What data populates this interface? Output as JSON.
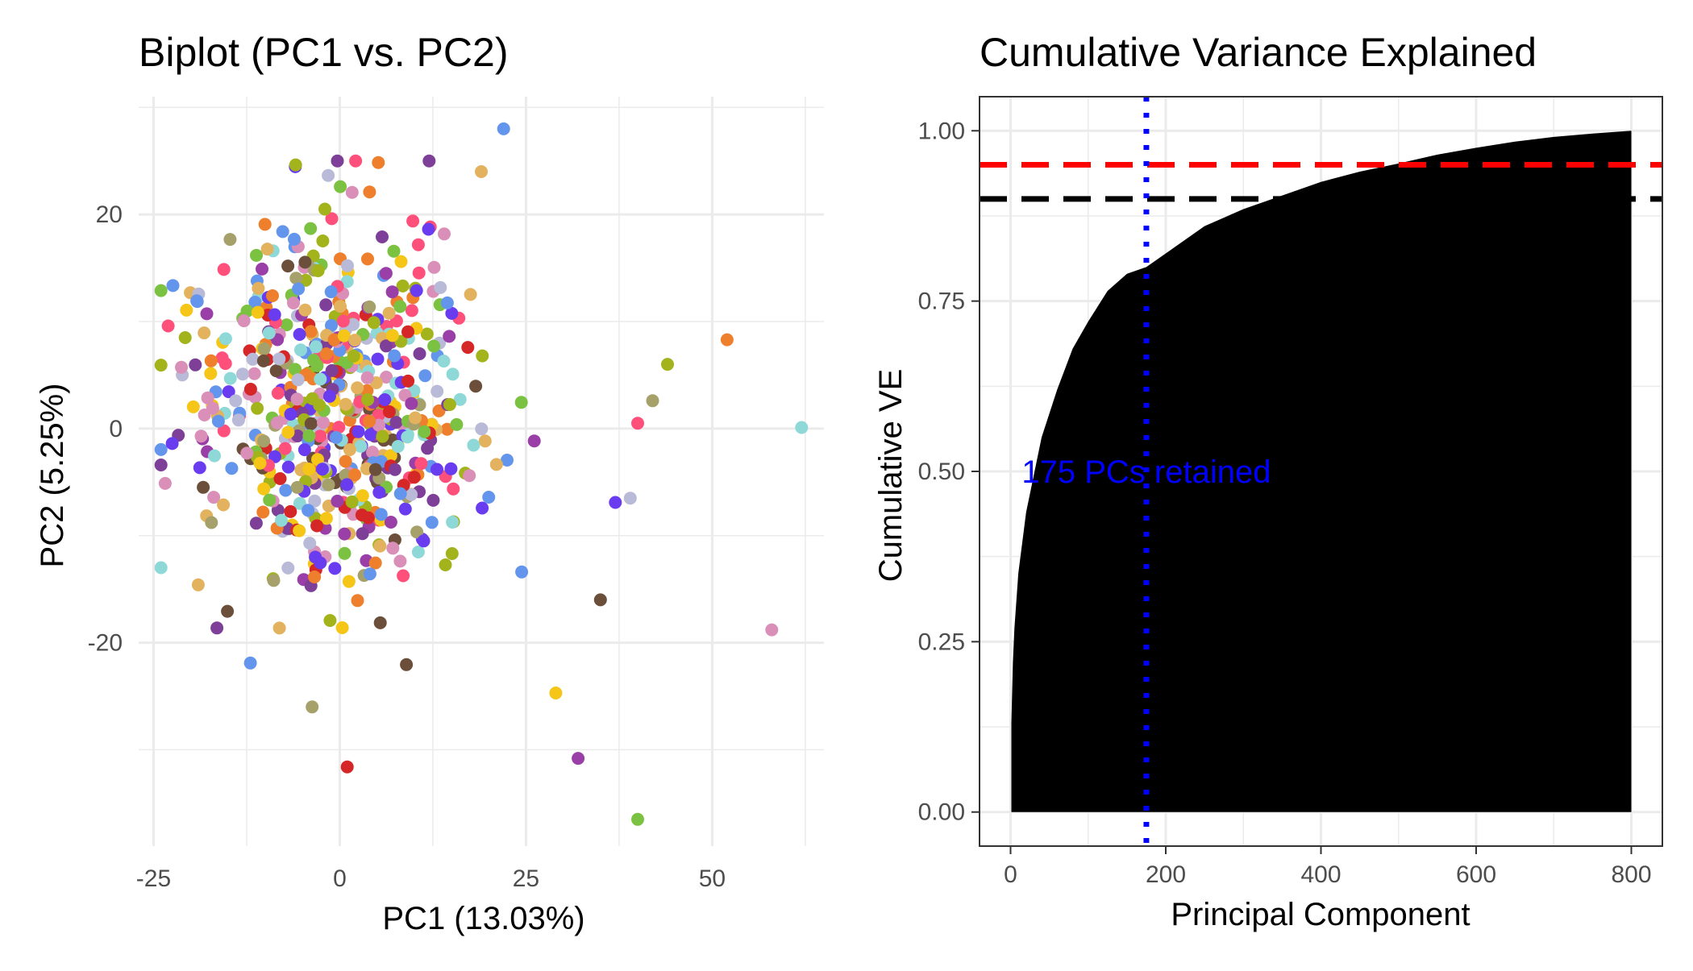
{
  "colors": {
    "grid": "#ebebeb",
    "tick_text": "#4d4d4d",
    "area_fill": "#000000",
    "hline_95": "#ff0000",
    "hline_90": "#000000",
    "vline": "#0000ff",
    "annotation": "#0000ff",
    "scatter_palette": [
      "#6495ED",
      "#FF4F7B",
      "#7CC242",
      "#A6A06A",
      "#F5C518",
      "#EE7F2D",
      "#6B4F3A",
      "#7E3F98",
      "#B9B9D8",
      "#D62728",
      "#8FD8D8",
      "#9B3FA8",
      "#A3B31C",
      "#D98FB7",
      "#E3B25E",
      "#6A3CF0"
    ]
  },
  "chart_data": [
    {
      "type": "scatter",
      "title": "Biplot (PC1 vs. PC2)",
      "xlabel": "PC1 (13.03%)",
      "ylabel": "PC2 (5.25%)",
      "xlim": [
        -27,
        65
      ],
      "ylim": [
        -39,
        31
      ],
      "x_ticks": [
        -25,
        0,
        25,
        50
      ],
      "x_tick_labels": [
        "-25",
        "0",
        "25",
        "50"
      ],
      "y_ticks": [
        -20,
        0,
        20
      ],
      "y_tick_labels": [
        "-20",
        "0",
        "20"
      ],
      "grid": true,
      "legend": "none",
      "notable_points": [
        {
          "x": 22,
          "y": 28
        },
        {
          "x": 12,
          "y": 25
        },
        {
          "x": 19,
          "y": 24
        },
        {
          "x": 52,
          "y": 8.3
        },
        {
          "x": 44,
          "y": 6
        },
        {
          "x": 42,
          "y": 2.6
        },
        {
          "x": 62,
          "y": 0.1
        },
        {
          "x": 40,
          "y": 0.5
        },
        {
          "x": 39,
          "y": -6.5
        },
        {
          "x": 37,
          "y": -6.9
        },
        {
          "x": 35,
          "y": -16
        },
        {
          "x": 58,
          "y": -18.8
        },
        {
          "x": 29,
          "y": -24.7
        },
        {
          "x": 32,
          "y": -30.8
        },
        {
          "x": 40,
          "y": -36.5
        },
        {
          "x": 1,
          "y": -31.6
        },
        {
          "x": -12,
          "y": -21.9
        },
        {
          "x": -24,
          "y": -3.4
        },
        {
          "x": -19,
          "y": -14.6
        },
        {
          "x": 4,
          "y": 22.1
        },
        {
          "x": -2,
          "y": 20.5
        }
      ],
      "cluster": {
        "n": 620,
        "center": [
          -1,
          2
        ],
        "sd": [
          9.5,
          8.5
        ]
      }
    },
    {
      "type": "area",
      "title": "Cumulative Variance Explained",
      "xlabel": "Principal Component",
      "ylabel": "Cumulative VE",
      "xlim": [
        -40,
        840
      ],
      "ylim": [
        -0.05,
        1.05
      ],
      "x_ticks": [
        0,
        200,
        400,
        600,
        800
      ],
      "x_tick_labels": [
        "0",
        "200",
        "400",
        "600",
        "800"
      ],
      "y_ticks": [
        0,
        0.25,
        0.5,
        0.75,
        1
      ],
      "y_tick_labels": [
        "0.00",
        "0.25",
        "0.50",
        "0.75",
        "1.00"
      ],
      "grid": true,
      "legend": "none",
      "x": [
        1,
        3,
        5,
        10,
        20,
        40,
        60,
        80,
        100,
        125,
        150,
        175,
        200,
        250,
        300,
        350,
        400,
        450,
        500,
        550,
        600,
        650,
        700,
        750,
        800
      ],
      "y": [
        0.13,
        0.22,
        0.27,
        0.35,
        0.44,
        0.55,
        0.62,
        0.68,
        0.72,
        0.765,
        0.79,
        0.8,
        0.82,
        0.86,
        0.885,
        0.905,
        0.925,
        0.94,
        0.952,
        0.965,
        0.975,
        0.984,
        0.991,
        0.996,
        1.0
      ],
      "hlines": [
        {
          "y": 0.95,
          "color": "#ff0000",
          "style": "dashed"
        },
        {
          "y": 0.9,
          "color": "#000000",
          "style": "dashed"
        }
      ],
      "vline": {
        "x": 175,
        "color": "#0000ff",
        "style": "dotted"
      },
      "annotation": {
        "text": "175 PCs retained",
        "x": 175,
        "y": 0.5
      }
    }
  ]
}
